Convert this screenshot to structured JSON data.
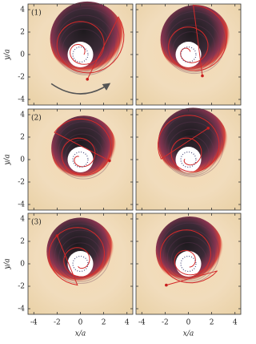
{
  "chart_data": [
    {
      "type": "image",
      "panel_label": "(1)",
      "ylabel": "y/a",
      "xlim": [
        -4.5,
        4.5
      ],
      "ylim": [
        -4.5,
        4.5
      ],
      "xticks": [
        -4,
        -2,
        0,
        2,
        4
      ],
      "yticks": [
        -4,
        -2,
        0,
        2,
        4
      ]
    },
    {
      "type": "image",
      "xlim": [
        -4.5,
        4.5
      ],
      "ylim": [
        -4.5,
        4.5
      ],
      "xticks": [
        -4,
        -2,
        0,
        2,
        4
      ],
      "yticks": [
        -4,
        -2,
        0,
        2,
        4
      ]
    },
    {
      "type": "image",
      "panel_label": "(2)",
      "ylabel": "y/a",
      "xlim": [
        -4.5,
        4.5
      ],
      "ylim": [
        -4.5,
        4.5
      ],
      "xticks": [
        -4,
        -2,
        0,
        2,
        4
      ],
      "yticks": [
        -4,
        -2,
        0,
        2,
        4
      ]
    },
    {
      "type": "image",
      "xlim": [
        -4.5,
        4.5
      ],
      "ylim": [
        -4.5,
        4.5
      ],
      "xticks": [
        -4,
        -2,
        0,
        2,
        4
      ],
      "yticks": [
        -4,
        -2,
        0,
        2,
        4
      ]
    },
    {
      "type": "image",
      "panel_label": "(3)",
      "ylabel": "y/a",
      "xlabel": "x/a",
      "xlim": [
        -4.5,
        4.5
      ],
      "ylim": [
        -4.5,
        4.5
      ],
      "xticks": [
        -4,
        -2,
        0,
        2,
        4
      ],
      "yticks": [
        -4,
        -2,
        0,
        2,
        4
      ]
    },
    {
      "type": "image",
      "xlabel": "x/a",
      "xlim": [
        -4.5,
        4.5
      ],
      "ylim": [
        -4.5,
        4.5
      ],
      "xticks": [
        -4,
        -2,
        0,
        2,
        4
      ],
      "yticks": [
        -4,
        -2,
        0,
        2,
        4
      ]
    }
  ]
}
